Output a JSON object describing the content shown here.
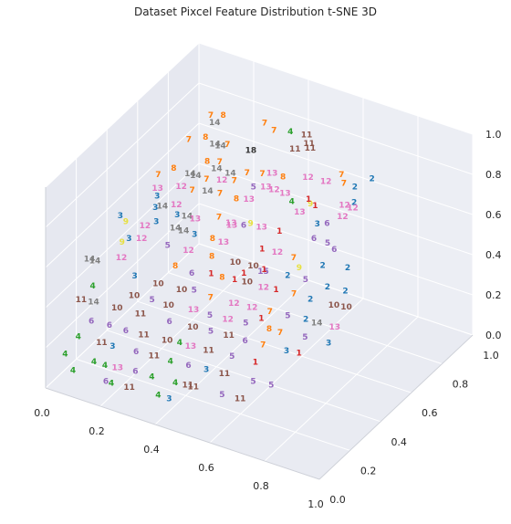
{
  "chart_data": {
    "type": "scatter",
    "title": "Dataset Pixcel Feature Distribution t-SNE 3D",
    "xlabel": "",
    "ylabel": "",
    "zlabel": "",
    "xlim": [
      0,
      1
    ],
    "ylim": [
      0,
      1
    ],
    "zlim": [
      0,
      1
    ],
    "grid": true,
    "xticks": [
      "0.0",
      "0.2",
      "0.4",
      "0.6",
      "0.8",
      "1.0"
    ],
    "yticks": [
      "0.0",
      "0.2",
      "0.4",
      "0.6",
      "0.8",
      "1.0"
    ],
    "zticks": [
      "0.0",
      "0.2",
      "0.4",
      "0.6",
      "0.8",
      "1.0"
    ],
    "class_colors": {
      "1": "#d62728",
      "2": "#1f77b4",
      "3": "#1f77b4",
      "4": "#2ca02c",
      "5": "#9467bd",
      "6": "#9467bd",
      "7": "#ff7f0e",
      "8": "#ff7f0e",
      "9": "#e7e040",
      "10": "#8c564b",
      "11": "#8c564b",
      "12": "#e377c2",
      "13": "#e377c2",
      "14": "#7f7f7f",
      "15": "#9467bd"
    },
    "points": [
      {
        "label": "11",
        "x": 0.55,
        "y": 0.72,
        "z": 0.98
      },
      {
        "label": "11",
        "x": 0.57,
        "y": 0.7,
        "z": 0.96
      },
      {
        "label": "11",
        "x": 0.58,
        "y": 0.69,
        "z": 0.95
      },
      {
        "label": "11",
        "x": 0.53,
        "y": 0.68,
        "z": 0.93
      },
      {
        "label": "7",
        "x": 0.2,
        "y": 0.72,
        "z": 0.92
      },
      {
        "label": "8",
        "x": 0.24,
        "y": 0.73,
        "z": 0.93
      },
      {
        "label": "14",
        "x": 0.22,
        "y": 0.71,
        "z": 0.9
      },
      {
        "label": "7",
        "x": 0.38,
        "y": 0.75,
        "z": 0.94
      },
      {
        "label": "7",
        "x": 0.42,
        "y": 0.74,
        "z": 0.93
      },
      {
        "label": "4",
        "x": 0.48,
        "y": 0.74,
        "z": 0.95
      },
      {
        "label": "7",
        "x": 0.17,
        "y": 0.63,
        "z": 0.85
      },
      {
        "label": "8",
        "x": 0.22,
        "y": 0.65,
        "z": 0.87
      },
      {
        "label": "14",
        "x": 0.26,
        "y": 0.64,
        "z": 0.86
      },
      {
        "label": "14",
        "x": 0.28,
        "y": 0.64,
        "z": 0.86
      },
      {
        "label": "7",
        "x": 0.3,
        "y": 0.65,
        "z": 0.87
      },
      {
        "label": "18",
        "x": 0.38,
        "y": 0.66,
        "z": 0.87
      },
      {
        "label": "7",
        "x": 0.3,
        "y": 0.6,
        "z": 0.82
      },
      {
        "label": "8",
        "x": 0.26,
        "y": 0.59,
        "z": 0.81
      },
      {
        "label": "14",
        "x": 0.3,
        "y": 0.58,
        "z": 0.8
      },
      {
        "label": "14",
        "x": 0.35,
        "y": 0.58,
        "z": 0.8
      },
      {
        "label": "7",
        "x": 0.4,
        "y": 0.6,
        "z": 0.81
      },
      {
        "label": "7",
        "x": 0.45,
        "y": 0.61,
        "z": 0.82
      },
      {
        "label": "13",
        "x": 0.48,
        "y": 0.62,
        "z": 0.83
      },
      {
        "label": "8",
        "x": 0.52,
        "y": 0.62,
        "z": 0.83
      },
      {
        "label": "12",
        "x": 0.6,
        "y": 0.64,
        "z": 0.85
      },
      {
        "label": "12",
        "x": 0.66,
        "y": 0.65,
        "z": 0.85
      },
      {
        "label": "7",
        "x": 0.72,
        "y": 0.66,
        "z": 0.86
      },
      {
        "label": "2",
        "x": 0.76,
        "y": 0.66,
        "z": 0.86
      },
      {
        "label": "7",
        "x": 0.7,
        "y": 0.68,
        "z": 0.88
      },
      {
        "label": "2",
        "x": 0.8,
        "y": 0.7,
        "z": 0.89
      },
      {
        "label": "2",
        "x": 0.78,
        "y": 0.62,
        "z": 0.82
      },
      {
        "label": "7",
        "x": 0.12,
        "y": 0.52,
        "z": 0.73
      },
      {
        "label": "8",
        "x": 0.16,
        "y": 0.55,
        "z": 0.76
      },
      {
        "label": "14",
        "x": 0.22,
        "y": 0.55,
        "z": 0.76
      },
      {
        "label": "14",
        "x": 0.24,
        "y": 0.55,
        "z": 0.76
      },
      {
        "label": "7",
        "x": 0.28,
        "y": 0.55,
        "z": 0.76
      },
      {
        "label": "12",
        "x": 0.33,
        "y": 0.56,
        "z": 0.77
      },
      {
        "label": "7",
        "x": 0.37,
        "y": 0.57,
        "z": 0.78
      },
      {
        "label": "5",
        "x": 0.44,
        "y": 0.57,
        "z": 0.78
      },
      {
        "label": "13",
        "x": 0.48,
        "y": 0.58,
        "z": 0.79
      },
      {
        "label": "12",
        "x": 0.51,
        "y": 0.58,
        "z": 0.79
      },
      {
        "label": "13",
        "x": 0.55,
        "y": 0.58,
        "z": 0.79
      },
      {
        "label": "1",
        "x": 0.63,
        "y": 0.59,
        "z": 0.79
      },
      {
        "label": "1",
        "x": 0.66,
        "y": 0.58,
        "z": 0.78
      },
      {
        "label": "12",
        "x": 0.75,
        "y": 0.61,
        "z": 0.8
      },
      {
        "label": "12",
        "x": 0.78,
        "y": 0.61,
        "z": 0.8
      },
      {
        "label": "12",
        "x": 0.76,
        "y": 0.58,
        "z": 0.77
      },
      {
        "label": "13",
        "x": 0.14,
        "y": 0.48,
        "z": 0.7
      },
      {
        "label": "3",
        "x": 0.15,
        "y": 0.46,
        "z": 0.68
      },
      {
        "label": "12",
        "x": 0.21,
        "y": 0.51,
        "z": 0.72
      },
      {
        "label": "7",
        "x": 0.25,
        "y": 0.51,
        "z": 0.72
      },
      {
        "label": "14",
        "x": 0.3,
        "y": 0.52,
        "z": 0.73
      },
      {
        "label": "7",
        "x": 0.34,
        "y": 0.53,
        "z": 0.73
      },
      {
        "label": "8",
        "x": 0.4,
        "y": 0.53,
        "z": 0.73
      },
      {
        "label": "13",
        "x": 0.44,
        "y": 0.54,
        "z": 0.74
      },
      {
        "label": "4",
        "x": 0.58,
        "y": 0.57,
        "z": 0.77
      },
      {
        "label": "13",
        "x": 0.62,
        "y": 0.55,
        "z": 0.75
      },
      {
        "label": "3",
        "x": 0.69,
        "y": 0.54,
        "z": 0.73
      },
      {
        "label": "6",
        "x": 0.72,
        "y": 0.55,
        "z": 0.74
      },
      {
        "label": "3",
        "x": 0.16,
        "y": 0.43,
        "z": 0.65
      },
      {
        "label": "14",
        "x": 0.18,
        "y": 0.44,
        "z": 0.66
      },
      {
        "label": "12",
        "x": 0.22,
        "y": 0.46,
        "z": 0.67
      },
      {
        "label": "3",
        "x": 0.24,
        "y": 0.43,
        "z": 0.65
      },
      {
        "label": "14",
        "x": 0.27,
        "y": 0.44,
        "z": 0.65
      },
      {
        "label": "13",
        "x": 0.3,
        "y": 0.44,
        "z": 0.65
      },
      {
        "label": "7",
        "x": 0.37,
        "y": 0.47,
        "z": 0.67
      },
      {
        "label": "13",
        "x": 0.42,
        "y": 0.46,
        "z": 0.67
      },
      {
        "label": "6",
        "x": 0.46,
        "y": 0.47,
        "z": 0.67
      },
      {
        "label": "9",
        "x": 0.48,
        "y": 0.48,
        "z": 0.68
      },
      {
        "label": "13",
        "x": 0.52,
        "y": 0.48,
        "z": 0.68
      },
      {
        "label": "1",
        "x": 0.58,
        "y": 0.49,
        "z": 0.68
      },
      {
        "label": "6",
        "x": 0.7,
        "y": 0.5,
        "z": 0.69
      },
      {
        "label": "5",
        "x": 0.75,
        "y": 0.5,
        "z": 0.69
      },
      {
        "label": "6",
        "x": 0.78,
        "y": 0.49,
        "z": 0.68
      },
      {
        "label": "3",
        "x": 0.06,
        "y": 0.38,
        "z": 0.6
      },
      {
        "label": "9",
        "x": 0.08,
        "y": 0.38,
        "z": 0.58
      },
      {
        "label": "12",
        "x": 0.15,
        "y": 0.38,
        "z": 0.59
      },
      {
        "label": "3",
        "x": 0.18,
        "y": 0.4,
        "z": 0.61
      },
      {
        "label": "14",
        "x": 0.25,
        "y": 0.4,
        "z": 0.61
      },
      {
        "label": "14",
        "x": 0.28,
        "y": 0.4,
        "z": 0.61
      },
      {
        "label": "3",
        "x": 0.32,
        "y": 0.4,
        "z": 0.61
      },
      {
        "label": "8",
        "x": 0.38,
        "y": 0.41,
        "z": 0.61
      },
      {
        "label": "13",
        "x": 0.42,
        "y": 0.41,
        "z": 0.61
      },
      {
        "label": "1",
        "x": 0.55,
        "y": 0.43,
        "z": 0.62
      },
      {
        "label": "12",
        "x": 0.6,
        "y": 0.44,
        "z": 0.62
      },
      {
        "label": "7",
        "x": 0.66,
        "y": 0.44,
        "z": 0.62
      },
      {
        "label": "2",
        "x": 0.76,
        "y": 0.45,
        "z": 0.62
      },
      {
        "label": "2",
        "x": 0.84,
        "y": 0.47,
        "z": 0.63
      },
      {
        "label": "3",
        "x": 0.12,
        "y": 0.33,
        "z": 0.55
      },
      {
        "label": "12",
        "x": 0.16,
        "y": 0.34,
        "z": 0.56
      },
      {
        "label": "9",
        "x": 0.1,
        "y": 0.32,
        "z": 0.53
      },
      {
        "label": "5",
        "x": 0.25,
        "y": 0.35,
        "z": 0.56
      },
      {
        "label": "12",
        "x": 0.32,
        "y": 0.36,
        "z": 0.56
      },
      {
        "label": "8",
        "x": 0.4,
        "y": 0.37,
        "z": 0.56
      },
      {
        "label": "10",
        "x": 0.48,
        "y": 0.38,
        "z": 0.56
      },
      {
        "label": "10",
        "x": 0.54,
        "y": 0.39,
        "z": 0.56
      },
      {
        "label": "1",
        "x": 0.58,
        "y": 0.39,
        "z": 0.56
      },
      {
        "label": "2",
        "x": 0.66,
        "y": 0.4,
        "z": 0.56
      },
      {
        "label": "5",
        "x": 0.72,
        "y": 0.41,
        "z": 0.56
      },
      {
        "label": "2",
        "x": 0.8,
        "y": 0.41,
        "z": 0.56
      },
      {
        "label": "2",
        "x": 0.86,
        "y": 0.42,
        "z": 0.56
      },
      {
        "label": "14",
        "x": 0.02,
        "y": 0.25,
        "z": 0.46
      },
      {
        "label": "14",
        "x": 0.04,
        "y": 0.25,
        "z": 0.46
      },
      {
        "label": "12",
        "x": 0.12,
        "y": 0.28,
        "z": 0.49
      },
      {
        "label": "8",
        "x": 0.3,
        "y": 0.31,
        "z": 0.51
      },
      {
        "label": "6",
        "x": 0.36,
        "y": 0.31,
        "z": 0.5
      },
      {
        "label": "1",
        "x": 0.42,
        "y": 0.33,
        "z": 0.51
      },
      {
        "label": "8",
        "x": 0.46,
        "y": 0.33,
        "z": 0.51
      },
      {
        "label": "1",
        "x": 0.5,
        "y": 0.34,
        "z": 0.51
      },
      {
        "label": "10",
        "x": 0.54,
        "y": 0.35,
        "z": 0.51
      },
      {
        "label": "12",
        "x": 0.6,
        "y": 0.35,
        "z": 0.51
      },
      {
        "label": "1",
        "x": 0.64,
        "y": 0.36,
        "z": 0.51
      },
      {
        "label": "7",
        "x": 0.7,
        "y": 0.37,
        "z": 0.51
      },
      {
        "label": "2",
        "x": 0.76,
        "y": 0.37,
        "z": 0.51
      },
      {
        "label": "10",
        "x": 0.84,
        "y": 0.38,
        "z": 0.51
      },
      {
        "label": "10",
        "x": 0.88,
        "y": 0.39,
        "z": 0.51
      },
      {
        "label": "3",
        "x": 0.18,
        "y": 0.26,
        "z": 0.44
      },
      {
        "label": "10",
        "x": 0.26,
        "y": 0.27,
        "z": 0.43
      },
      {
        "label": "10",
        "x": 0.34,
        "y": 0.28,
        "z": 0.43
      },
      {
        "label": "5",
        "x": 0.38,
        "y": 0.29,
        "z": 0.44
      },
      {
        "label": "7",
        "x": 0.44,
        "y": 0.29,
        "z": 0.43
      },
      {
        "label": "12",
        "x": 0.52,
        "y": 0.3,
        "z": 0.43
      },
      {
        "label": "12",
        "x": 0.58,
        "y": 0.31,
        "z": 0.43
      },
      {
        "label": "7",
        "x": 0.64,
        "y": 0.32,
        "z": 0.43
      },
      {
        "label": "5",
        "x": 0.7,
        "y": 0.33,
        "z": 0.43
      },
      {
        "label": "2",
        "x": 0.76,
        "y": 0.34,
        "z": 0.43
      },
      {
        "label": "14",
        "x": 0.8,
        "y": 0.34,
        "z": 0.43
      },
      {
        "label": "13",
        "x": 0.86,
        "y": 0.35,
        "z": 0.43
      },
      {
        "label": "4",
        "x": 0.06,
        "y": 0.2,
        "z": 0.38
      },
      {
        "label": "10",
        "x": 0.2,
        "y": 0.22,
        "z": 0.38
      },
      {
        "label": "5",
        "x": 0.26,
        "y": 0.23,
        "z": 0.38
      },
      {
        "label": "10",
        "x": 0.32,
        "y": 0.23,
        "z": 0.38
      },
      {
        "label": "13",
        "x": 0.4,
        "y": 0.25,
        "z": 0.38
      },
      {
        "label": "5",
        "x": 0.46,
        "y": 0.25,
        "z": 0.38
      },
      {
        "label": "12",
        "x": 0.52,
        "y": 0.26,
        "z": 0.38
      },
      {
        "label": "5",
        "x": 0.58,
        "y": 0.27,
        "z": 0.38
      },
      {
        "label": "8",
        "x": 0.66,
        "y": 0.28,
        "z": 0.38
      },
      {
        "label": "7",
        "x": 0.7,
        "y": 0.28,
        "z": 0.38
      },
      {
        "label": "5",
        "x": 0.78,
        "y": 0.3,
        "z": 0.38
      },
      {
        "label": "3",
        "x": 0.86,
        "y": 0.31,
        "z": 0.38
      },
      {
        "label": "11",
        "x": 0.04,
        "y": 0.16,
        "z": 0.33
      },
      {
        "label": "14",
        "x": 0.08,
        "y": 0.17,
        "z": 0.33
      },
      {
        "label": "10",
        "x": 0.16,
        "y": 0.18,
        "z": 0.33
      },
      {
        "label": "11",
        "x": 0.24,
        "y": 0.19,
        "z": 0.33
      },
      {
        "label": "6",
        "x": 0.34,
        "y": 0.2,
        "z": 0.33
      },
      {
        "label": "10",
        "x": 0.42,
        "y": 0.21,
        "z": 0.33
      },
      {
        "label": "5",
        "x": 0.48,
        "y": 0.22,
        "z": 0.33
      },
      {
        "label": "11",
        "x": 0.54,
        "y": 0.23,
        "z": 0.33
      },
      {
        "label": "6",
        "x": 0.6,
        "y": 0.23,
        "z": 0.33
      },
      {
        "label": "7",
        "x": 0.66,
        "y": 0.24,
        "z": 0.33
      },
      {
        "label": "3",
        "x": 0.74,
        "y": 0.25,
        "z": 0.33
      },
      {
        "label": "1",
        "x": 0.78,
        "y": 0.26,
        "z": 0.33
      },
      {
        "label": "6",
        "x": 0.1,
        "y": 0.12,
        "z": 0.28
      },
      {
        "label": "6",
        "x": 0.16,
        "y": 0.13,
        "z": 0.28
      },
      {
        "label": "6",
        "x": 0.22,
        "y": 0.13,
        "z": 0.28
      },
      {
        "label": "11",
        "x": 0.28,
        "y": 0.14,
        "z": 0.28
      },
      {
        "label": "10",
        "x": 0.36,
        "y": 0.15,
        "z": 0.28
      },
      {
        "label": "4",
        "x": 0.4,
        "y": 0.16,
        "z": 0.28
      },
      {
        "label": "13",
        "x": 0.44,
        "y": 0.16,
        "z": 0.28
      },
      {
        "label": "11",
        "x": 0.5,
        "y": 0.17,
        "z": 0.28
      },
      {
        "label": "5",
        "x": 0.58,
        "y": 0.18,
        "z": 0.28
      },
      {
        "label": "1",
        "x": 0.66,
        "y": 0.19,
        "z": 0.28
      },
      {
        "label": "4",
        "x": 0.08,
        "y": 0.07,
        "z": 0.23
      },
      {
        "label": "11",
        "x": 0.16,
        "y": 0.08,
        "z": 0.23
      },
      {
        "label": "3",
        "x": 0.2,
        "y": 0.08,
        "z": 0.23
      },
      {
        "label": "6",
        "x": 0.28,
        "y": 0.09,
        "z": 0.23
      },
      {
        "label": "11",
        "x": 0.34,
        "y": 0.1,
        "z": 0.23
      },
      {
        "label": "4",
        "x": 0.4,
        "y": 0.1,
        "z": 0.23
      },
      {
        "label": "6",
        "x": 0.46,
        "y": 0.11,
        "z": 0.23
      },
      {
        "label": "3",
        "x": 0.52,
        "y": 0.12,
        "z": 0.23
      },
      {
        "label": "11",
        "x": 0.58,
        "y": 0.13,
        "z": 0.23
      },
      {
        "label": "5",
        "x": 0.68,
        "y": 0.14,
        "z": 0.23
      },
      {
        "label": "5",
        "x": 0.74,
        "y": 0.15,
        "z": 0.23
      },
      {
        "label": "4",
        "x": 0.06,
        "y": 0.02,
        "z": 0.17
      },
      {
        "label": "4",
        "x": 0.16,
        "y": 0.03,
        "z": 0.17
      },
      {
        "label": "4",
        "x": 0.2,
        "y": 0.03,
        "z": 0.17
      },
      {
        "label": "13",
        "x": 0.24,
        "y": 0.04,
        "z": 0.17
      },
      {
        "label": "6",
        "x": 0.3,
        "y": 0.05,
        "z": 0.17
      },
      {
        "label": "4",
        "x": 0.36,
        "y": 0.05,
        "z": 0.17
      },
      {
        "label": "4",
        "x": 0.44,
        "y": 0.06,
        "z": 0.17
      },
      {
        "label": "11",
        "x": 0.48,
        "y": 0.07,
        "z": 0.17
      },
      {
        "label": "11",
        "x": 0.5,
        "y": 0.07,
        "z": 0.17
      },
      {
        "label": "5",
        "x": 0.6,
        "y": 0.08,
        "z": 0.17
      },
      {
        "label": "11",
        "x": 0.66,
        "y": 0.09,
        "z": 0.17
      },
      {
        "label": "4",
        "x": 0.1,
        "y": 0.0,
        "z": 0.12
      },
      {
        "label": "6",
        "x": 0.22,
        "y": 0.0,
        "z": 0.12
      },
      {
        "label": "4",
        "x": 0.24,
        "y": 0.0,
        "z": 0.12
      },
      {
        "label": "11",
        "x": 0.3,
        "y": 0.01,
        "z": 0.12
      },
      {
        "label": "4",
        "x": 0.4,
        "y": 0.02,
        "z": 0.12
      },
      {
        "label": "3",
        "x": 0.44,
        "y": 0.02,
        "z": 0.12
      },
      {
        "label": "1",
        "x": 0.5,
        "y": 0.4,
        "z": 0.5
      },
      {
        "label": "15",
        "x": 0.56,
        "y": 0.42,
        "z": 0.52
      },
      {
        "label": "1",
        "x": 0.62,
        "y": 0.3,
        "z": 0.4
      },
      {
        "label": "13",
        "x": 0.4,
        "y": 0.5,
        "z": 0.62
      },
      {
        "label": "9",
        "x": 0.62,
        "y": 0.62,
        "z": 0.74
      },
      {
        "label": "9",
        "x": 0.68,
        "y": 0.44,
        "z": 0.58
      }
    ]
  }
}
